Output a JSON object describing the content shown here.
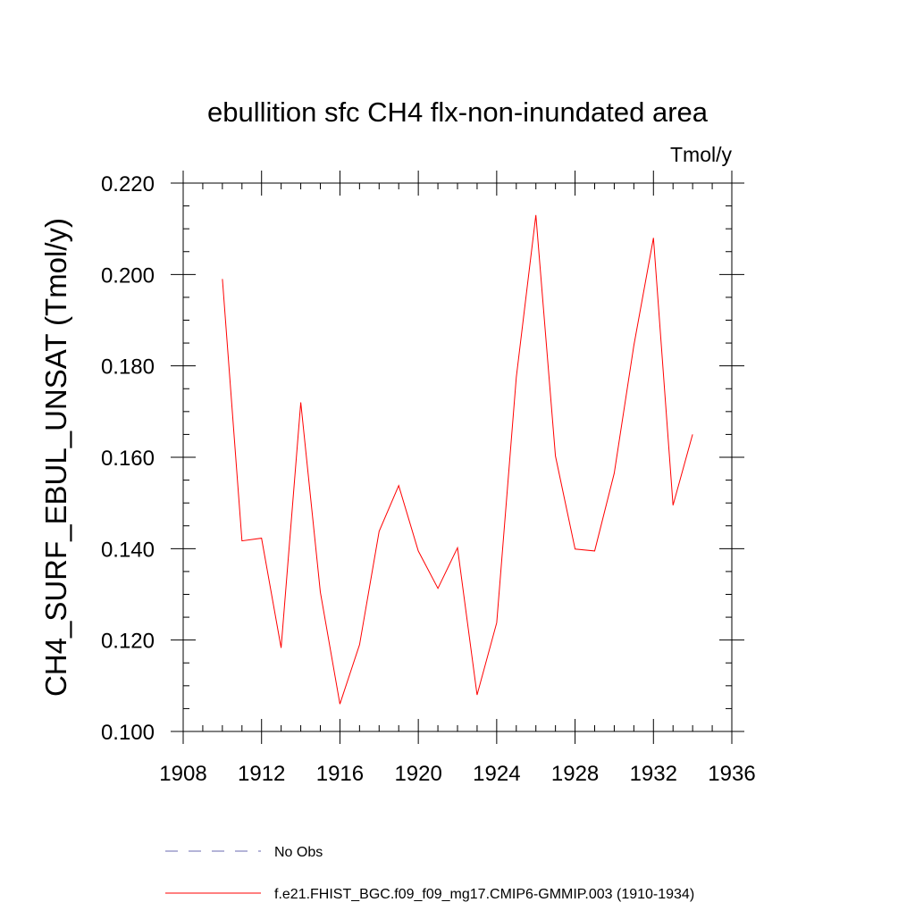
{
  "chart_data": {
    "type": "line",
    "title": "ebullition sfc CH4 flx-non-inundated area",
    "units_label": "Tmol/y",
    "xlabel": "",
    "ylabel": "CH4_SURF_EBUL_UNSAT  (Tmol/y)",
    "xlim": [
      1908,
      1936
    ],
    "ylim": [
      0.1,
      0.22
    ],
    "x_ticks": [
      1908,
      1912,
      1916,
      1920,
      1924,
      1928,
      1932,
      1936
    ],
    "x_tick_labels": [
      "1908",
      "1912",
      "1916",
      "1920",
      "1924",
      "1928",
      "1932",
      "1936"
    ],
    "y_ticks": [
      0.1,
      0.12,
      0.14,
      0.16,
      0.18,
      0.2,
      0.22
    ],
    "y_tick_labels": [
      "0.100",
      "0.120",
      "0.140",
      "0.160",
      "0.180",
      "0.200",
      "0.220"
    ],
    "x_minor_step": 1,
    "y_minor_step": 0.005,
    "grid": false,
    "series": [
      {
        "name": "f.e21.FHIST_BGC.f09_f09_mg17.CMIP6-GMMIP.003 (1910-1934)",
        "color": "#ff0000",
        "style": "solid",
        "x": [
          1910,
          1911,
          1912,
          1913,
          1914,
          1915,
          1916,
          1917,
          1918,
          1919,
          1920,
          1921,
          1922,
          1923,
          1924,
          1925,
          1926,
          1927,
          1928,
          1929,
          1930,
          1931,
          1932,
          1933,
          1934
        ],
        "y": [
          0.199,
          0.1417,
          0.1423,
          0.1183,
          0.172,
          0.1305,
          0.106,
          0.119,
          0.1438,
          0.1538,
          0.1395,
          0.1313,
          0.1402,
          0.108,
          0.1238,
          0.1775,
          0.213,
          0.1603,
          0.1399,
          0.1395,
          0.1565,
          0.1845,
          0.208,
          0.1495,
          0.165
        ]
      }
    ],
    "legend": [
      {
        "label": "No Obs",
        "color": "#6a6ab0",
        "style": "dashed"
      },
      {
        "label": "f.e21.FHIST_BGC.f09_f09_mg17.CMIP6-GMMIP.003 (1910-1934)",
        "color": "#ff0000",
        "style": "solid"
      }
    ],
    "legend_position": "bottom"
  }
}
